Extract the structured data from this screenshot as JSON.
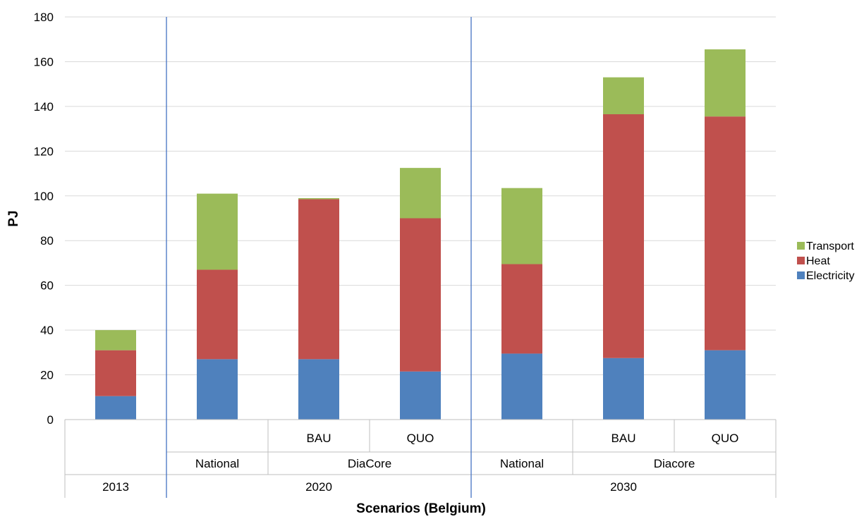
{
  "chart_data": {
    "type": "bar",
    "stacked": true,
    "xlabel": "Scenarios (Belgium)",
    "ylabel": "PJ",
    "ylim": [
      0,
      180
    ],
    "yticks": [
      0,
      20,
      40,
      60,
      80,
      100,
      120,
      140,
      160,
      180
    ],
    "grid": true,
    "legend_position": "right",
    "category_levels": {
      "level1": [
        "",
        "",
        "BAU",
        "QUO",
        "",
        "BAU",
        "QUO"
      ],
      "level2": [
        {
          "label": "",
          "span": [
            0,
            0
          ]
        },
        {
          "label": "National",
          "span": [
            1,
            1
          ]
        },
        {
          "label": "DiaCore",
          "span": [
            2,
            3
          ]
        },
        {
          "label": "National",
          "span": [
            4,
            4
          ]
        },
        {
          "label": "Diacore",
          "span": [
            5,
            6
          ]
        }
      ],
      "level3": [
        {
          "label": "2013",
          "span": [
            0,
            0
          ]
        },
        {
          "label": "2020",
          "span": [
            1,
            3
          ]
        },
        {
          "label": "2030",
          "span": [
            4,
            6
          ]
        }
      ]
    },
    "series": [
      {
        "name": "Electricity",
        "color": "#4F81BD",
        "values": [
          10.5,
          27,
          27,
          21.5,
          29.5,
          27.5,
          31
        ]
      },
      {
        "name": "Heat",
        "color": "#C0504D",
        "values": [
          20.5,
          40,
          71.5,
          68.5,
          40,
          109,
          104.5
        ]
      },
      {
        "name": "Transport",
        "color": "#9BBB59",
        "values": [
          9,
          34,
          0.5,
          22.5,
          34,
          16.5,
          30
        ]
      }
    ],
    "legend_order": [
      "Transport",
      "Heat",
      "Electricity"
    ]
  }
}
